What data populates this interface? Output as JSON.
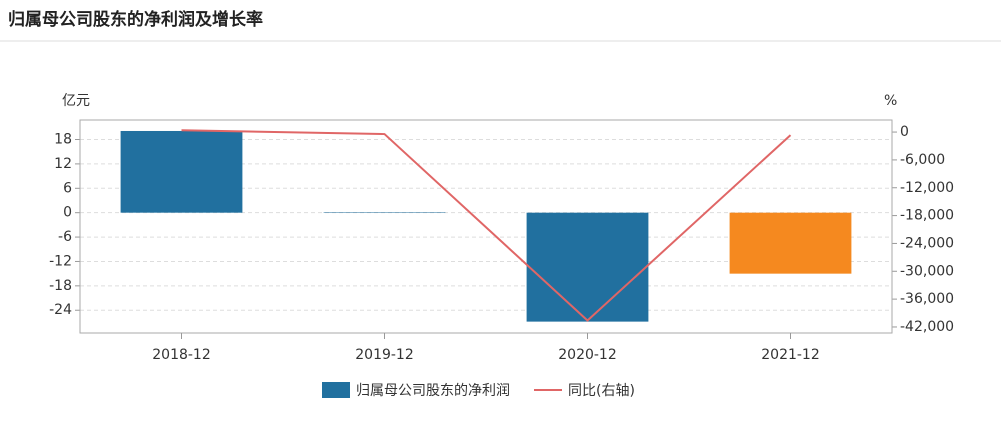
{
  "chart_data": {
    "type": "bar-line",
    "title": "归属母公司股东的净利润及增长率",
    "y_label": "亿元",
    "y2_label": "%",
    "categories": [
      "2018-12",
      "2019-12",
      "2020-12",
      "2021-12"
    ],
    "ylim": [
      -29.6,
      22.8
    ],
    "yticks": [
      18,
      12,
      6,
      0,
      -6,
      -12,
      -18,
      -24
    ],
    "y2lim": [
      -43300,
      2600
    ],
    "y2ticks": [
      0,
      {
        "value": -6000,
        "label": "-6,000"
      },
      {
        "value": -12000,
        "label": "-12,000"
      },
      {
        "value": -18000,
        "label": "-18,000"
      },
      {
        "value": -24000,
        "label": "-24,000"
      },
      {
        "value": -30000,
        "label": "-30,000"
      },
      {
        "value": -36000,
        "label": "-36,000"
      },
      {
        "value": -42000,
        "label": "-42,000"
      }
    ],
    "grid": true,
    "series": [
      {
        "name": "归属母公司股东的净利润",
        "type": "bar",
        "color": "#21709f",
        "colors": [
          "#21709f",
          "#21709f",
          "#21709f",
          "#f5891f"
        ],
        "values": [
          20.1,
          0.1,
          -26.8,
          -15
        ]
      },
      {
        "name": "同比(右轴)",
        "type": "line",
        "axis": "y2",
        "color": "#e06666",
        "values": [
          400,
          -430,
          -40600,
          -650
        ]
      }
    ]
  }
}
